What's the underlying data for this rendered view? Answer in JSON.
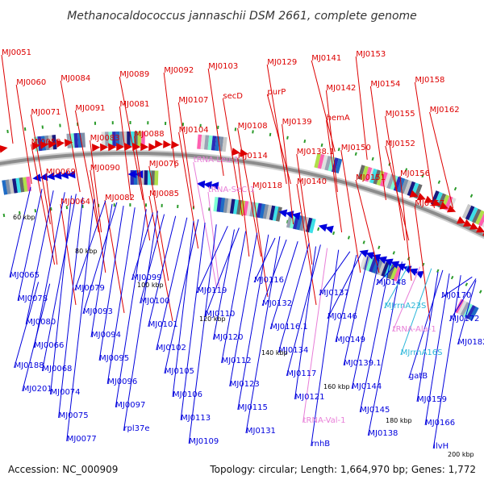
{
  "title": "Methanocaldococcus jannaschii DSM 2661, complete genome",
  "footer": {
    "accession": "Accession: NC_000909",
    "topology": "Topology: circular; Length: 1,664,970 bp; Genes: 1,772"
  },
  "scale_labels": [
    "60 kbp",
    "80 kbp",
    "100 kbp",
    "120 kbp",
    "140 kbp",
    "160 kbp",
    "180 kbp",
    "200 kbp"
  ],
  "colors": {
    "forward": "#dd0000",
    "reverse": "#0000dd",
    "trna": "#e87ed8",
    "rrna": "#2ab6d9",
    "backbone": "#8c8c8c"
  },
  "labels_outer": [
    "MJ0051",
    "MJ0060",
    "MJ0071",
    "MJ0059",
    "MJ0069",
    "MJ0064",
    "MJ0084",
    "MJ0091",
    "MJ0083",
    "MJ0090",
    "MJ0082",
    "MJ0089",
    "MJ0081",
    "MJ0088",
    "MJ0076",
    "MJ0085",
    "MJ0092",
    "MJ0107",
    "MJ0104",
    "tRNA-Leu-1",
    "tRNA-SeC-1",
    "MJ0103",
    "secD",
    "MJ0108",
    "MJ0114",
    "MJ0118",
    "MJ0129",
    "purP",
    "MJ0139",
    "MJ0138.1",
    "MJ0140",
    "MJ0141",
    "MJ0142",
    "hemA",
    "MJ0150",
    "MJ0151",
    "MJ0153",
    "MJ0154",
    "MJ0155",
    "MJ0152",
    "MJ0156",
    "MJ0157",
    "MJ0158",
    "MJ0162"
  ],
  "labels_inner": [
    "MJ0065",
    "MJ0078",
    "MJ0080",
    "MJ0066",
    "MJ0068",
    "MJ0074",
    "MJ0075",
    "MJ0077",
    "MJ0079",
    "MJ0093",
    "MJ0094",
    "MJ0095",
    "MJ0096",
    "MJ0097",
    "rpl37e",
    "MJ0099",
    "MJ0100",
    "MJ0101",
    "MJ0102",
    "MJ0105",
    "MJ0106",
    "MJ0113",
    "MJ0109",
    "MJ0119",
    "MJ0110",
    "MJ0120",
    "MJ0112",
    "MJ0123",
    "MJ0115",
    "MJ0131",
    "MJ0116",
    "MJ0132",
    "MJ0116.1",
    "MJ0134",
    "MJ0117",
    "MJ0121",
    "tRNA-Val-1",
    "rnhB",
    "MJ0137",
    "MJ0146",
    "MJ0149",
    "MJ0139.1",
    "MJ0144",
    "MJ0145",
    "MJ0138",
    "MJ0148",
    "MJrrnA23S",
    "tRNA-Ala-1",
    "MJrrnA16S",
    "gatB",
    "MJ0159",
    "MJ0166",
    "ilvH",
    "MJ0170",
    "MJ0172",
    "MJ0182",
    "MJ0188",
    "MJ0201"
  ]
}
